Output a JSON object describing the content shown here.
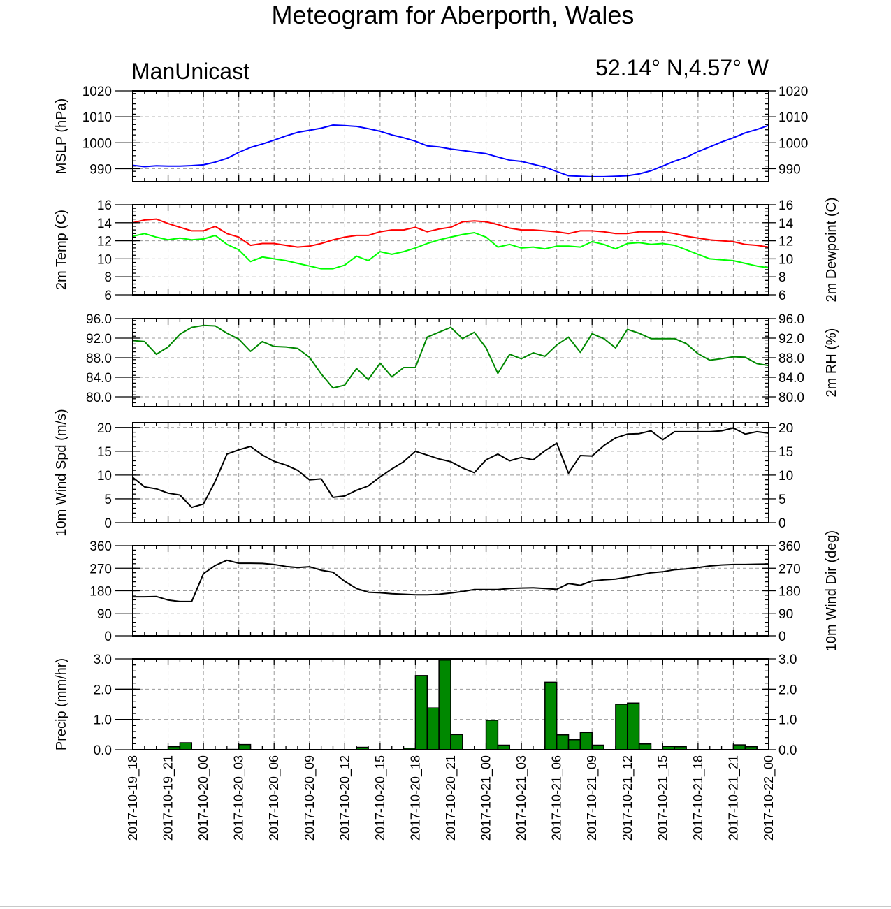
{
  "title": "Meteogram for Aberporth, Wales",
  "left_label": "ManUnicast",
  "right_label": "52.14° N,4.57° W",
  "chart_data": {
    "type": "line",
    "x_tick_labels": [
      "2017-10-19_18",
      "2017-10-19_21",
      "2017-10-20_00",
      "2017-10-20_03",
      "2017-10-20_06",
      "2017-10-20_09",
      "2017-10-20_12",
      "2017-10-20_15",
      "2017-10-20_18",
      "2017-10-20_21",
      "2017-10-21_00",
      "2017-10-21_03",
      "2017-10-21_06",
      "2017-10-21_09",
      "2017-10-21_12",
      "2017-10-21_15",
      "2017-10-21_18",
      "2017-10-21_21",
      "2017-10-22_00"
    ],
    "x_hours_range": [
      0,
      54
    ],
    "grid": true,
    "panels": [
      {
        "name": "mslp",
        "ylabel_left": "MSLP (hPa)",
        "ylabel_right": "",
        "ylim": [
          985,
          1020
        ],
        "yticks": [
          990,
          1000,
          1010,
          1020
        ],
        "ytick_labels": [
          "990",
          "1000",
          "1010",
          "1020"
        ],
        "series": [
          {
            "color": "#0000ff",
            "type": "line",
            "x": [
              0,
              1,
              2,
              3,
              4,
              5,
              6,
              7,
              8,
              9,
              10,
              11,
              12,
              13,
              14,
              15,
              16,
              17,
              18,
              19,
              20,
              21,
              22,
              23,
              24,
              25,
              26,
              27,
              28,
              29,
              30,
              31,
              32,
              33,
              34,
              35,
              36,
              37,
              38,
              39,
              40,
              41,
              42,
              43,
              44,
              45,
              46,
              47,
              48,
              49,
              50,
              51,
              52,
              53,
              54
            ],
            "y": [
              991.3,
              990.8,
              991.1,
              991,
              991,
              991.2,
              991.5,
              992.5,
              994,
              996.3,
              998.2,
              999.5,
              1001,
              1002.6,
              1004,
              1004.8,
              1005.6,
              1006.8,
              1006.6,
              1006.3,
              1005.4,
              1004.4,
              1003,
              1001.9,
              1000.6,
              998.8,
              998.4,
              997.6,
              997,
              996.4,
              995.8,
              994.5,
              993.3,
              992.8,
              991.7,
              990.6,
              988.9,
              987.3,
              987.1,
              986.9,
              986.9,
              987.1,
              987.3,
              988,
              989.2,
              991,
              992.9,
              994.4,
              996.6,
              998.4,
              1000.3,
              1001.9,
              1003.8,
              1005.1,
              1006.7
            ]
          }
        ]
      },
      {
        "name": "temp",
        "ylabel_left": "2m Temp (C)",
        "ylabel_right": "2m Dewpoint (C)",
        "ylim": [
          6,
          16
        ],
        "yticks": [
          6,
          8,
          10,
          12,
          14,
          16
        ],
        "ytick_labels": [
          "6",
          "8",
          "10",
          "12",
          "14",
          "16"
        ],
        "series": [
          {
            "color": "#ff0000",
            "type": "line",
            "x": [
              0,
              1,
              2,
              3,
              4,
              5,
              6,
              7,
              8,
              9,
              10,
              11,
              12,
              13,
              14,
              15,
              16,
              17,
              18,
              19,
              20,
              21,
              22,
              23,
              24,
              25,
              26,
              27,
              28,
              29,
              30,
              31,
              32,
              33,
              34,
              35,
              36,
              37,
              38,
              39,
              40,
              41,
              42,
              43,
              44,
              45,
              46,
              47,
              48,
              49,
              50,
              51,
              52,
              53,
              54
            ],
            "y": [
              14,
              14.3,
              14.4,
              13.9,
              13.5,
              13.1,
              13.1,
              13.6,
              12.8,
              12.4,
              11.5,
              11.7,
              11.7,
              11.5,
              11.3,
              11.4,
              11.7,
              12.1,
              12.4,
              12.6,
              12.6,
              13,
              13.2,
              13.2,
              13.5,
              13,
              13.3,
              13.5,
              14.1,
              14.2,
              14.1,
              13.8,
              13.4,
              13.2,
              13.2,
              13.1,
              13,
              12.8,
              13.1,
              13.1,
              13,
              12.8,
              12.8,
              13,
              13,
              13,
              12.8,
              12.5,
              12.3,
              12.1,
              12,
              11.9,
              11.6,
              11.5,
              11.3
            ]
          },
          {
            "color": "#00ff00",
            "type": "line",
            "x": [
              0,
              1,
              2,
              3,
              4,
              5,
              6,
              7,
              8,
              9,
              10,
              11,
              12,
              13,
              14,
              15,
              16,
              17,
              18,
              19,
              20,
              21,
              22,
              23,
              24,
              25,
              26,
              27,
              28,
              29,
              30,
              31,
              32,
              33,
              34,
              35,
              36,
              37,
              38,
              39,
              40,
              41,
              42,
              43,
              44,
              45,
              46,
              47,
              48,
              49,
              50,
              51,
              52,
              53,
              54
            ],
            "y": [
              12.5,
              12.8,
              12.4,
              12.1,
              12.3,
              12.1,
              12.2,
              12.6,
              11.6,
              11,
              9.7,
              10.2,
              10,
              9.8,
              9.5,
              9.2,
              8.9,
              8.9,
              9.3,
              10.3,
              9.8,
              10.8,
              10.5,
              10.8,
              11.2,
              11.7,
              12.1,
              12.4,
              12.7,
              12.9,
              12.4,
              11.3,
              11.6,
              11.2,
              11.3,
              11.1,
              11.4,
              11.4,
              11.3,
              11.9,
              11.6,
              11.1,
              11.7,
              11.8,
              11.6,
              11.7,
              11.5,
              11,
              10.5,
              10,
              9.9,
              9.8,
              9.5,
              9.2,
              9
            ]
          }
        ]
      },
      {
        "name": "rh",
        "ylabel_left": "",
        "ylabel_right": "2m RH (%)",
        "ylim": [
          78,
          96
        ],
        "yticks": [
          80,
          84,
          88,
          92,
          96
        ],
        "ytick_labels": [
          "80.0",
          "84.0",
          "88.0",
          "92.0",
          "96.0"
        ],
        "series": [
          {
            "color": "#008800",
            "type": "line",
            "x": [
              0,
              1,
              2,
              3,
              4,
              5,
              6,
              7,
              8,
              9,
              10,
              11,
              12,
              13,
              14,
              15,
              16,
              17,
              18,
              19,
              20,
              21,
              22,
              23,
              24,
              25,
              26,
              27,
              28,
              29,
              30,
              31,
              32,
              33,
              34,
              35,
              36,
              37,
              38,
              39,
              40,
              41,
              42,
              43,
              44,
              45,
              46,
              47,
              48,
              49,
              50,
              51,
              52,
              53,
              54
            ],
            "y": [
              91.5,
              91.3,
              88.7,
              90.2,
              92.8,
              94.2,
              94.6,
              94.5,
              93,
              91.8,
              89.3,
              91.3,
              90.3,
              90.2,
              89.9,
              88.1,
              84.7,
              81.8,
              82.4,
              85.8,
              83.5,
              86.9,
              84.1,
              86,
              86,
              92.2,
              93.2,
              94.2,
              91.9,
              93.2,
              90,
              84.8,
              88.7,
              87.8,
              89,
              88.3,
              90.6,
              92.2,
              89.1,
              92.9,
              91.9,
              90,
              93.8,
              93,
              91.9,
              91.9,
              91.9,
              90.9,
              88.8,
              87.5,
              87.8,
              88.2,
              88.1,
              86.8,
              86.4
            ]
          }
        ]
      },
      {
        "name": "wspd",
        "ylabel_left": "10m Wind Spd (m/s)",
        "ylabel_right": "",
        "ylim": [
          0,
          21
        ],
        "yticks": [
          0,
          5,
          10,
          15,
          20
        ],
        "ytick_labels": [
          "0",
          "5",
          "10",
          "15",
          "20"
        ],
        "series": [
          {
            "color": "#000000",
            "type": "line",
            "x": [
              0,
              1,
              2,
              3,
              4,
              5,
              6,
              7,
              8,
              9,
              10,
              11,
              12,
              13,
              14,
              15,
              16,
              17,
              18,
              19,
              20,
              21,
              22,
              23,
              24,
              25,
              26,
              27,
              28,
              29,
              30,
              31,
              32,
              33,
              34,
              35,
              36,
              37,
              38,
              39,
              40,
              41,
              42,
              43,
              44,
              45,
              46,
              47,
              48,
              49,
              50,
              51,
              52,
              53,
              54
            ],
            "y": [
              9.5,
              7.5,
              7.1,
              6.2,
              5.8,
              3.2,
              3.9,
              8.7,
              14.4,
              15.3,
              16,
              14.2,
              12.9,
              12.1,
              11,
              9,
              9.2,
              5.3,
              5.6,
              6.8,
              7.7,
              9.6,
              11.3,
              12.8,
              15,
              14.2,
              13.4,
              12.8,
              11.5,
              10.5,
              13.2,
              14.4,
              13,
              13.7,
              13.2,
              15.1,
              16.7,
              10.4,
              14.1,
              14,
              16.2,
              17.8,
              18.6,
              18.7,
              19.3,
              17.4,
              19.1,
              19.1,
              19.1,
              19.1,
              19.3,
              19.9,
              18.6,
              19.1,
              18.8
            ]
          }
        ]
      },
      {
        "name": "wdir",
        "ylabel_left": "",
        "ylabel_right": "10m Wind Dir (deg)",
        "ylim": [
          0,
          360
        ],
        "yticks": [
          0,
          90,
          180,
          270,
          360
        ],
        "ytick_labels": [
          "0",
          "90",
          "180",
          "270",
          "360"
        ],
        "series": [
          {
            "color": "#000000",
            "type": "line",
            "x": [
              0,
              1,
              2,
              3,
              4,
              5,
              6,
              7,
              8,
              9,
              10,
              11,
              12,
              13,
              14,
              15,
              16,
              17,
              18,
              19,
              20,
              21,
              22,
              23,
              24,
              25,
              26,
              27,
              28,
              29,
              30,
              31,
              32,
              33,
              34,
              35,
              36,
              37,
              38,
              39,
              40,
              41,
              42,
              43,
              44,
              45,
              46,
              47,
              48,
              49,
              50,
              51,
              52,
              53,
              54
            ],
            "y": [
              156,
              156,
              157,
              143,
              137,
              137,
              248,
              281,
              302,
              290,
              290,
              289,
              285,
              277,
              273,
              276,
              262,
              254,
              218,
              189,
              174,
              172,
              168,
              166,
              164,
              164,
              166,
              171,
              177,
              185,
              185,
              185,
              189,
              191,
              192,
              189,
              186,
              209,
              202,
              219,
              224,
              227,
              234,
              243,
              252,
              256,
              264,
              267,
              273,
              279,
              283,
              285,
              285,
              286,
              287
            ]
          }
        ]
      },
      {
        "name": "precip",
        "ylabel_left": "Precip (mm/hr)",
        "ylabel_right": "",
        "ylim": [
          0,
          3
        ],
        "yticks": [
          0,
          1,
          2,
          3
        ],
        "ytick_labels": [
          "0.0",
          "1.0",
          "2.0",
          "3.0"
        ],
        "series": [
          {
            "color": "#008800",
            "type": "bar",
            "x": [
              3,
              4,
              8,
              9,
              19,
              23,
              24,
              25,
              26,
              27,
              30,
              31,
              35,
              36,
              37,
              38,
              39,
              41,
              42,
              43,
              45,
              46,
              51,
              52
            ],
            "y": [
              0.1,
              0.23,
              0.01,
              0.17,
              0.08,
              0.05,
              2.45,
              1.38,
              2.96,
              0.5,
              0.97,
              0.15,
              2.23,
              0.49,
              0.33,
              0.57,
              0.15,
              1.5,
              1.54,
              0.19,
              0.11,
              0.1,
              0.16,
              0.1
            ]
          }
        ]
      }
    ]
  }
}
